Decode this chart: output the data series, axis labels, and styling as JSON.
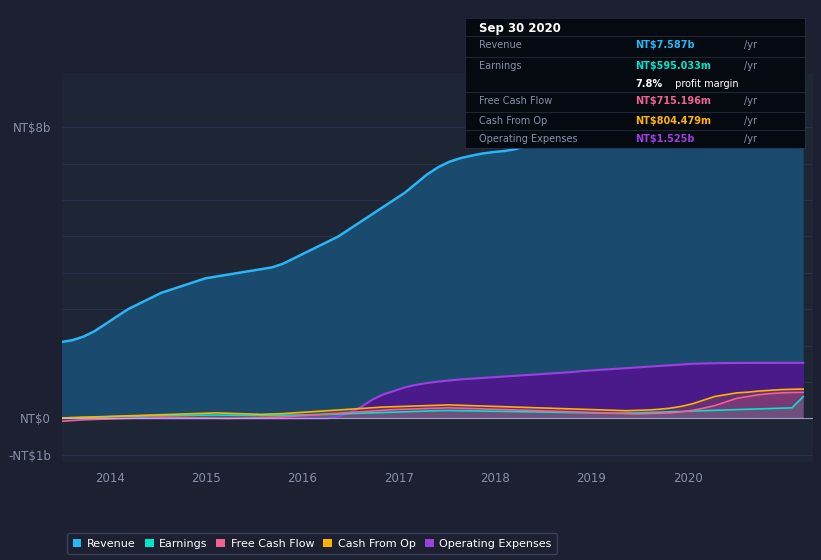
{
  "background_color": "#1c2030",
  "plot_bg_color": "#1e2535",
  "grid_color": "#2a3050",
  "text_color": "#8890aa",
  "ylim": [
    -1.2,
    9.5
  ],
  "xlim": [
    2013.5,
    2021.3
  ],
  "xticks": [
    2014,
    2015,
    2016,
    2017,
    2018,
    2019,
    2020
  ],
  "ytick_labels": {
    "8": "NT$8b",
    "0": "NT$0",
    "-1": "-NT$1b"
  },
  "series_names": [
    "Revenue",
    "Earnings",
    "Free Cash Flow",
    "Cash From Op",
    "Operating Expenses"
  ],
  "revenue_line_color": "#29b6f6",
  "revenue_fill_color": "#1a4a6e",
  "opex_line_color": "#9c40e0",
  "opex_fill_color": "#4a1a8a",
  "earnings_color": "#00e5cc",
  "fcf_color": "#f06292",
  "cfo_color": "#ffb300",
  "legend_colors": [
    "#29b6f6",
    "#00e5cc",
    "#f06292",
    "#ffb300",
    "#9c40e0"
  ],
  "info_box": {
    "date": "Sep 30 2020",
    "revenue_label": "Revenue",
    "revenue_val": "NT$7.587b",
    "revenue_unit": "/yr",
    "earnings_label": "Earnings",
    "earnings_val": "NT$595.033m",
    "earnings_unit": "/yr",
    "margin_val": "7.8%",
    "margin_text": " profit margin",
    "fcf_label": "Free Cash Flow",
    "fcf_val": "NT$715.196m",
    "fcf_unit": "/yr",
    "cfo_label": "Cash From Op",
    "cfo_val": "NT$804.479m",
    "cfo_unit": "/yr",
    "opex_label": "Operating Expenses",
    "opex_val": "NT$1.525b",
    "opex_unit": "/yr",
    "revenue_color": "#29b6f6",
    "earnings_color": "#00e5cc",
    "fcf_color": "#f06292",
    "cfo_color": "#ffb300",
    "opex_color": "#9c40e0",
    "label_color": "#8890aa",
    "bg_color": "#050a10",
    "border_color": "#2a3050"
  },
  "revenue": [
    2.1,
    2.15,
    2.25,
    2.4,
    2.6,
    2.8,
    3.0,
    3.15,
    3.3,
    3.45,
    3.55,
    3.65,
    3.75,
    3.85,
    3.9,
    3.95,
    4.0,
    4.05,
    4.1,
    4.15,
    4.25,
    4.4,
    4.55,
    4.7,
    4.85,
    5.0,
    5.2,
    5.4,
    5.6,
    5.8,
    6.0,
    6.2,
    6.45,
    6.7,
    6.9,
    7.05,
    7.15,
    7.22,
    7.28,
    7.32,
    7.35,
    7.4,
    7.5,
    7.6,
    7.7,
    7.75,
    7.8,
    7.85,
    7.9,
    7.95,
    8.0,
    8.05,
    8.05,
    8.0,
    7.95,
    7.9,
    7.85,
    7.8,
    7.75,
    7.72,
    7.7,
    7.68,
    7.65,
    7.63,
    7.62,
    7.6,
    7.59,
    7.587
  ],
  "opex": [
    0.0,
    0.0,
    0.0,
    0.0,
    0.0,
    0.0,
    0.0,
    0.0,
    0.0,
    0.0,
    0.0,
    0.0,
    0.0,
    0.0,
    0.0,
    0.0,
    0.0,
    0.0,
    0.0,
    0.0,
    0.0,
    0.0,
    0.0,
    0.0,
    0.0,
    0.05,
    0.15,
    0.3,
    0.5,
    0.65,
    0.75,
    0.85,
    0.92,
    0.97,
    1.01,
    1.04,
    1.07,
    1.09,
    1.11,
    1.13,
    1.15,
    1.17,
    1.19,
    1.21,
    1.23,
    1.25,
    1.27,
    1.3,
    1.32,
    1.34,
    1.36,
    1.38,
    1.4,
    1.42,
    1.44,
    1.46,
    1.48,
    1.5,
    1.51,
    1.515,
    1.52,
    1.522,
    1.523,
    1.524,
    1.524,
    1.525,
    1.525,
    1.525
  ],
  "earnings": [
    0.01,
    0.02,
    0.025,
    0.03,
    0.04,
    0.05,
    0.055,
    0.06,
    0.065,
    0.07,
    0.075,
    0.08,
    0.085,
    0.09,
    0.09,
    0.088,
    0.085,
    0.082,
    0.08,
    0.082,
    0.085,
    0.09,
    0.095,
    0.1,
    0.11,
    0.12,
    0.13,
    0.14,
    0.15,
    0.16,
    0.17,
    0.18,
    0.19,
    0.2,
    0.21,
    0.215,
    0.21,
    0.205,
    0.2,
    0.195,
    0.19,
    0.185,
    0.18,
    0.175,
    0.17,
    0.165,
    0.16,
    0.155,
    0.15,
    0.145,
    0.14,
    0.145,
    0.15,
    0.16,
    0.17,
    0.18,
    0.19,
    0.2,
    0.21,
    0.22,
    0.23,
    0.24,
    0.25,
    0.26,
    0.27,
    0.28,
    0.29,
    0.595
  ],
  "fcf": [
    -0.08,
    -0.06,
    -0.04,
    -0.03,
    -0.02,
    -0.01,
    0.0,
    0.01,
    0.02,
    0.03,
    0.025,
    0.02,
    0.015,
    0.01,
    0.005,
    0.0,
    0.005,
    0.01,
    0.02,
    0.03,
    0.04,
    0.06,
    0.08,
    0.1,
    0.12,
    0.14,
    0.16,
    0.18,
    0.2,
    0.22,
    0.24,
    0.25,
    0.26,
    0.27,
    0.28,
    0.29,
    0.28,
    0.27,
    0.26,
    0.25,
    0.24,
    0.23,
    0.22,
    0.21,
    0.2,
    0.19,
    0.18,
    0.17,
    0.16,
    0.15,
    0.14,
    0.13,
    0.12,
    0.13,
    0.14,
    0.15,
    0.18,
    0.22,
    0.28,
    0.35,
    0.45,
    0.55,
    0.6,
    0.65,
    0.68,
    0.7,
    0.71,
    0.715
  ],
  "cfo": [
    0.01,
    0.02,
    0.03,
    0.04,
    0.05,
    0.06,
    0.07,
    0.08,
    0.09,
    0.1,
    0.11,
    0.12,
    0.13,
    0.14,
    0.15,
    0.14,
    0.13,
    0.12,
    0.11,
    0.12,
    0.13,
    0.15,
    0.17,
    0.19,
    0.21,
    0.23,
    0.25,
    0.27,
    0.29,
    0.31,
    0.32,
    0.33,
    0.34,
    0.35,
    0.36,
    0.37,
    0.36,
    0.35,
    0.34,
    0.33,
    0.32,
    0.31,
    0.3,
    0.29,
    0.28,
    0.27,
    0.26,
    0.25,
    0.24,
    0.23,
    0.22,
    0.21,
    0.22,
    0.23,
    0.25,
    0.28,
    0.33,
    0.4,
    0.5,
    0.6,
    0.65,
    0.7,
    0.72,
    0.75,
    0.77,
    0.79,
    0.8,
    0.804
  ],
  "n_points": 68,
  "x_start": 2013.5,
  "x_end": 2021.2
}
